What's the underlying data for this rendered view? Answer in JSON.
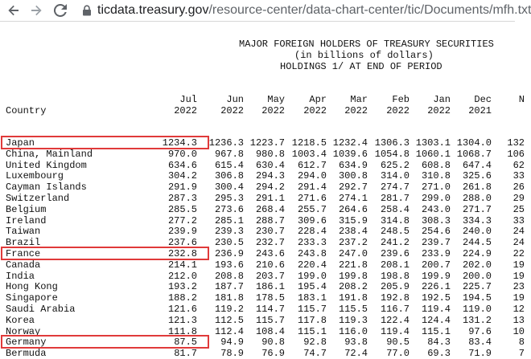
{
  "browser": {
    "url_host": "ticdata.treasury.gov",
    "url_path": "/resource-center/data-chart-center/tic/Documents/mfh.txt",
    "icons": [
      "back-arrow-icon",
      "forward-arrow-icon",
      "reload-icon",
      "info-lock-icon"
    ]
  },
  "document": {
    "title_lines": [
      "MAJOR FOREIGN HOLDERS OF TREASURY SECURITIES",
      "(in billions of dollars)",
      "HOLDINGS 1/ AT END OF PERIOD"
    ],
    "country_header": "Country",
    "months": [
      {
        "m": "Jul",
        "y": "2022"
      },
      {
        "m": "Jun",
        "y": "2022"
      },
      {
        "m": "May",
        "y": "2022"
      },
      {
        "m": "Apr",
        "y": "2022"
      },
      {
        "m": "Mar",
        "y": "2022"
      },
      {
        "m": "Feb",
        "y": "2022"
      },
      {
        "m": "Jan",
        "y": "2022"
      },
      {
        "m": "Dec",
        "y": "2021"
      },
      {
        "m": "N",
        "y": ""
      }
    ],
    "rows": [
      {
        "country": "Japan",
        "values": [
          "1234.3",
          "1236.3",
          "1223.7",
          "1218.5",
          "1232.4",
          "1306.3",
          "1303.1",
          "1304.0",
          "132"
        ]
      },
      {
        "country": "China, Mainland",
        "values": [
          "970.0",
          "967.8",
          "980.8",
          "1003.4",
          "1039.6",
          "1054.8",
          "1060.1",
          "1068.7",
          "106"
        ]
      },
      {
        "country": "United Kingdom",
        "values": [
          "634.6",
          "615.4",
          "630.4",
          "612.7",
          "634.9",
          "625.2",
          "608.8",
          "647.4",
          "62"
        ]
      },
      {
        "country": "Luxembourg",
        "values": [
          "304.2",
          "306.8",
          "294.3",
          "294.0",
          "300.8",
          "314.0",
          "310.8",
          "325.6",
          "33"
        ]
      },
      {
        "country": "Cayman Islands",
        "values": [
          "291.9",
          "300.4",
          "294.2",
          "291.4",
          "292.7",
          "274.7",
          "271.0",
          "261.8",
          "26"
        ]
      },
      {
        "country": "Switzerland",
        "values": [
          "287.3",
          "295.3",
          "291.1",
          "271.6",
          "274.1",
          "281.7",
          "299.0",
          "288.0",
          "29"
        ]
      },
      {
        "country": "Belgium",
        "values": [
          "285.5",
          "273.6",
          "268.4",
          "255.7",
          "264.6",
          "258.4",
          "243.0",
          "271.7",
          "25"
        ]
      },
      {
        "country": "Ireland",
        "values": [
          "277.2",
          "285.1",
          "288.7",
          "309.6",
          "315.9",
          "314.8",
          "308.3",
          "334.3",
          "33"
        ]
      },
      {
        "country": "Taiwan",
        "values": [
          "239.9",
          "239.3",
          "230.7",
          "228.4",
          "238.4",
          "248.5",
          "254.6",
          "240.0",
          "24"
        ]
      },
      {
        "country": "Brazil",
        "values": [
          "237.6",
          "230.5",
          "232.7",
          "233.3",
          "237.2",
          "241.2",
          "239.7",
          "244.5",
          "24"
        ]
      },
      {
        "country": "France",
        "values": [
          "232.8",
          "236.9",
          "243.6",
          "243.8",
          "247.0",
          "239.6",
          "233.9",
          "224.9",
          "22"
        ]
      },
      {
        "country": "Canada",
        "values": [
          "214.1",
          "193.6",
          "210.6",
          "220.4",
          "221.8",
          "208.1",
          "200.7",
          "202.0",
          "19"
        ]
      },
      {
        "country": "India",
        "values": [
          "212.0",
          "208.8",
          "203.7",
          "199.0",
          "199.8",
          "198.8",
          "199.9",
          "200.0",
          "19"
        ]
      },
      {
        "country": "Hong Kong",
        "values": [
          "193.2",
          "187.7",
          "186.1",
          "195.4",
          "208.2",
          "205.9",
          "226.1",
          "225.7",
          "23"
        ]
      },
      {
        "country": "Singapore",
        "values": [
          "188.2",
          "181.8",
          "178.5",
          "183.1",
          "191.8",
          "192.8",
          "192.5",
          "194.5",
          "19"
        ]
      },
      {
        "country": "Saudi Arabia",
        "values": [
          "121.6",
          "119.2",
          "114.7",
          "115.7",
          "115.5",
          "116.7",
          "119.4",
          "119.0",
          "12"
        ]
      },
      {
        "country": "Korea",
        "values": [
          "121.3",
          "112.5",
          "115.7",
          "117.8",
          "119.3",
          "122.4",
          "124.4",
          "131.2",
          "13"
        ]
      },
      {
        "country": "Norway",
        "values": [
          "111.8",
          "112.4",
          "108.4",
          "115.1",
          "116.0",
          "119.4",
          "115.1",
          "97.6",
          "10"
        ]
      },
      {
        "country": "Germany",
        "values": [
          "87.5",
          "94.9",
          "90.8",
          "92.8",
          "93.8",
          "90.5",
          "84.3",
          "83.4",
          "8"
        ]
      },
      {
        "country": "Bermuda",
        "values": [
          "81.7",
          "78.9",
          "76.9",
          "74.7",
          "72.4",
          "77.0",
          "69.3",
          "71.9",
          "7"
        ]
      }
    ],
    "highlighted_countries": [
      "Japan",
      "France",
      "Germany"
    ],
    "highlight_color": "#e03a3a"
  }
}
